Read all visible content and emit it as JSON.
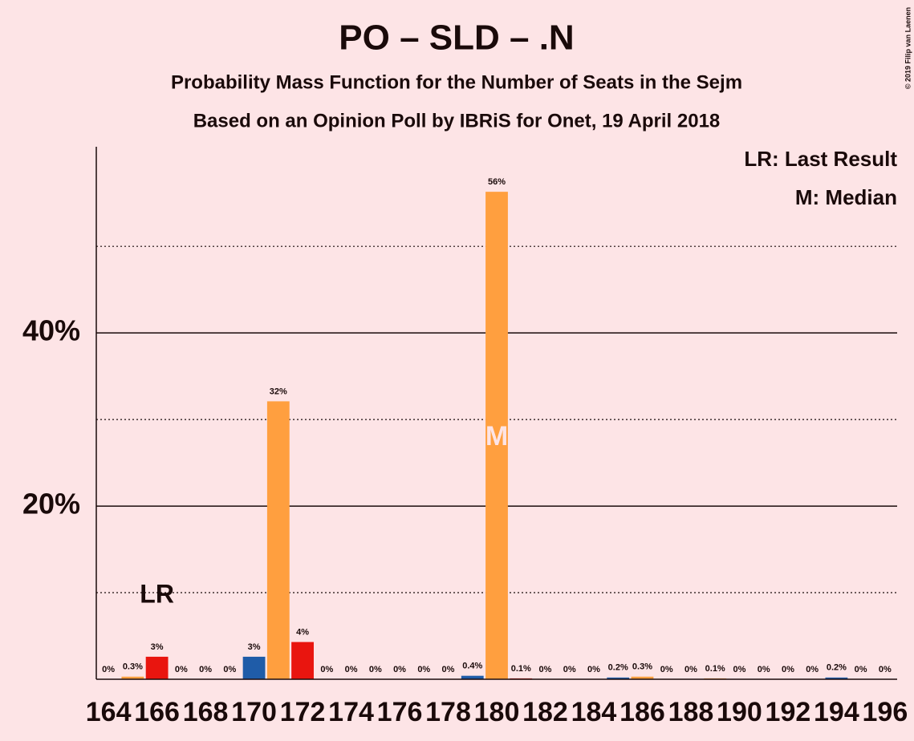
{
  "chart_data": {
    "type": "bar",
    "title": "PO – SLD – .N",
    "subtitle": [
      "Probability Mass Function for the Number of Seats in the Sejm",
      "Based on an Opinion Poll by IBRiS for Onet, 19 April 2018"
    ],
    "copyright": "© 2019 Filip van Laenen",
    "categories": [
      164,
      null,
      166,
      null,
      168,
      null,
      170,
      null,
      172,
      null,
      174,
      null,
      176,
      null,
      178,
      null,
      180,
      null,
      182,
      null,
      184,
      null,
      186,
      null,
      188,
      null,
      190,
      null,
      192,
      null,
      194,
      null,
      196
    ],
    "values": [
      0,
      0.3,
      2.6,
      0,
      0,
      0,
      2.6,
      32.1,
      4.3,
      0,
      0,
      0,
      0,
      0,
      0,
      0.4,
      56.3,
      0.1,
      0,
      0,
      0,
      0.2,
      0.3,
      0,
      0,
      0.1,
      0,
      0,
      0,
      0,
      0.2,
      0,
      0
    ],
    "value_labels": [
      "0%",
      "0.3%",
      "3%",
      "0%",
      "0%",
      "0%",
      "3%",
      "32%",
      "4%",
      "0%",
      "0%",
      "0%",
      "0%",
      "0%",
      "0%",
      "0.4%",
      "56%",
      "0.1%",
      "0%",
      "0%",
      "0%",
      "0.2%",
      "0.3%",
      "0%",
      "0%",
      "0.1%",
      "0%",
      "0%",
      "0%",
      "0%",
      "0.2%",
      "0%",
      "0%"
    ],
    "colors": [
      "#1f5ca8",
      "#ff9f3f",
      "#e9150f"
    ],
    "ylim": [
      0,
      61.5
    ],
    "yticks": [
      {
        "value": 20,
        "label": "20%"
      },
      {
        "value": 40,
        "label": "40%"
      }
    ],
    "minor_yticks": [
      10,
      30,
      50
    ],
    "grid": true,
    "annotations": [
      {
        "label": "LR",
        "x": 166
      },
      {
        "label": "M",
        "x": 180
      }
    ],
    "legend_notes": [
      "LR: Last Result",
      "M: Median"
    ]
  }
}
